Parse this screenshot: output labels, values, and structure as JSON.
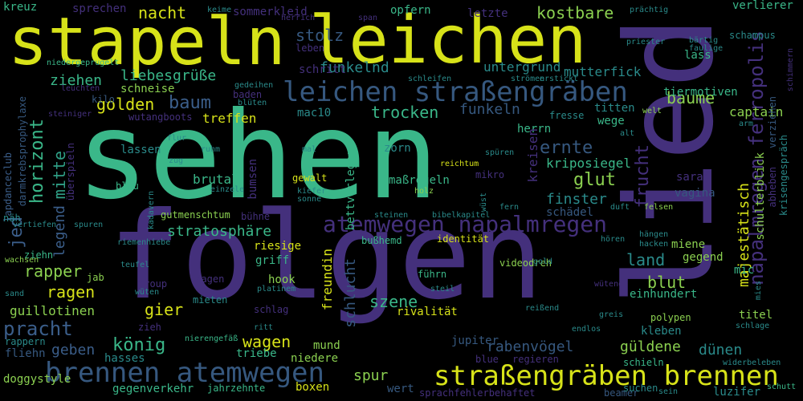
{
  "words": {
    "sehen": "sehen",
    "folgen": "folgen",
    "stapeln": "stapeln",
    "leichen": "leichen",
    "lied": "lied",
    "leichen_strassengraeben": "leichen straßengräben",
    "atemwegen_napalmregen": "atemwegen napalmregen",
    "brennen_atemwegen": "brennen atemwegen",
    "strassengraeben_brennen": "straßengräben brennen",
    "napalmregen_ferropolis": "napalmregen ferropolis",
    "nacht": "nacht",
    "kostbare": "kostbare",
    "baume": "baume",
    "captain": "captain",
    "stolz": "stolz",
    "funkelnd": "funkelnd",
    "liebesgruesse": "liebesgrüße",
    "ziehen": "ziehen",
    "golden": "golden",
    "baum": "baum",
    "trocken": "trocken",
    "funkeln": "funkeln",
    "mutterfick": "mutterfick",
    "untergrund": "untergrund",
    "horizont": "horizont",
    "mitte": "mitte",
    "jed": "jed",
    "legend": "legend",
    "ernte": "ernte",
    "glut": "glut",
    "frucht": "frucht",
    "kriposiegel": "kriposiegel",
    "finster": "finster",
    "stratosphaere": "stratosphäre",
    "majestaetisch": "majestätisch",
    "schulterblick": "schulterblick",
    "rapper": "rapper",
    "ragen": "ragen",
    "pracht": "pracht",
    "koenig": "könig",
    "gier": "gier",
    "szene": "szene",
    "blut": "blut",
    "land": "land",
    "wagen": "wagen",
    "geben": "geben",
    "rabenvoegel": "rabenvögel",
    "gueldene": "güldene",
    "duenen": "dünen",
    "spur": "spur",
    "sarah": "sarah",
    "vagina": "vagina",
    "schlucht": "schlucht",
    "freundin": "freundin",
    "rivalitaet": "rivalität",
    "guillotinen": "guillotinen",
    "sprechen": "sprechen",
    "sommerkleid": "sommerkleid",
    "opfern": "opfern",
    "letzte": "letzte",
    "kreuz": "kreuz",
    "verlierer": "verlierer",
    "schampus": "schampus",
    "lass": "lass",
    "tiermotiven": "tiermotiven",
    "titten": "titten",
    "wege": "wege",
    "fresse": "fresse",
    "herrn": "herrn",
    "treffen": "treffen",
    "mac10": "mac10",
    "schneise": "schneise",
    "schritt": "schritt",
    "leben": "leben",
    "kilo": "kilo",
    "zorn": "zorn",
    "gewalt": "gewalt",
    "massregeln": "maßregeln",
    "brutal": "brutal",
    "blau": "blau",
    "lassen": "lassen",
    "bumsen": "bumsen",
    "mikro": "mikro",
    "schaedel": "schädel",
    "bettvorleger": "bettvorleger",
    "gutmenschtum": "gutmenschtum",
    "buehne": "bühne",
    "riesige": "riesige",
    "griff": "griff",
    "hook": "hook",
    "gegend": "gegend",
    "miene": "miene",
    "mic": "mic",
    "einhundert": "einhundert",
    "titel": "titel",
    "polypen": "polypen",
    "kleben": "kleben",
    "identitaet": "identität",
    "videodreh": "videodreh",
    "jupiter": "jupiter",
    "regieren": "regieren",
    "schieln": "schieln",
    "mund": "mund",
    "niedere": "niedere",
    "triebe": "triebe",
    "hasses": "hasses",
    "boxen": "boxen",
    "wert": "wert",
    "blue": "blue",
    "doggystyle": "doggystyle",
    "gegenverkehr": "gegenverkehr",
    "jahrzehnte": "jahrzehnte",
    "sprachfehlerbehaftet": "sprachfehlerbehaftet",
    "beamer": "beamer",
    "suchen": "suchen",
    "luzifer": "luzifer",
    "schutt": "schutt",
    "fliehn": "fliehn",
    "rappern": "rappern",
    "zieh": "zieh",
    "ziehn": "ziehn",
    "jab": "jab",
    "group": "group",
    "tragen": "tragen",
    "mieten": "mieten",
    "schlag": "schlag",
    "fuehrn": "führn",
    "lapdanceclub": "lapdanceclub",
    "darmkrebsprophylaxe": "darmkrebsprophylaxe",
    "ueberspieln": "überspieln",
    "naeh": "näh",
    "krisengespraech": "krisengespräch",
    "verziehen": "verziehen",
    "abheben": "abheben",
    "schimmern": "schimmern",
    "staehlen": "stählen",
    "wutangboots": "wutangboots",
    "steiniger": "steiniger",
    "herrich": "herrich",
    "keime": "keime",
    "span": "span",
    "praechtig": "prächtig",
    "priester": "priester",
    "baertig": "bärtig",
    "faulige": "faulige",
    "niedergeprugelt": "niedergeprugelt",
    "leuchten": "leuchten",
    "schleifen": "schleifen",
    "stroemen": "strömen",
    "erstickt": "erstickt",
    "baden": "baden",
    "blueten": "blüten",
    "gedeihen": "gedeihen",
    "welt": "welt",
    "alt": "alt",
    "arm": "arm",
    "flur": "flur",
    "zug": "zug",
    "ruhm": "ruhm",
    "mal": "mal",
    "spueren": "spüren",
    "reichtum": "reichtum",
    "kadavern": "kadavern",
    "einzele": "einzele",
    "kiefer": "kiefer",
    "sonne": "sonne",
    "holz": "holz",
    "fern": "fern",
    "wust": "wüst",
    "duft": "duft",
    "felsen": "felsen",
    "steinen": "steinen",
    "bibelkapitel": "bibelkapitel",
    "haengen": "hängen",
    "hacken": "hacken",
    "hoeren": "hören",
    "buss": "bußhemd",
    "riemenhiebe": "riemenhiebe",
    "spuren": "spuren",
    "vertiefen": "vertiefen",
    "wachsen": "wachsen",
    "teufel": "teufel",
    "gold": "gold",
    "sand": "sand",
    "wueten": "wüten",
    "platinem": "platinem",
    "steil": "steil",
    "wuetend": "wütend",
    "mies": "mies",
    "ritt": "ritt",
    "reissend": "reißend",
    "greis": "greis",
    "schlage": "schlage",
    "endlos": "endlos",
    "nierengefaess": "nierengefäß",
    "widerbeleben": "widerbeleben",
    "sein": "sein",
    "kreisen": "kreisen",
    "fressen_small": "fresse"
  }
}
